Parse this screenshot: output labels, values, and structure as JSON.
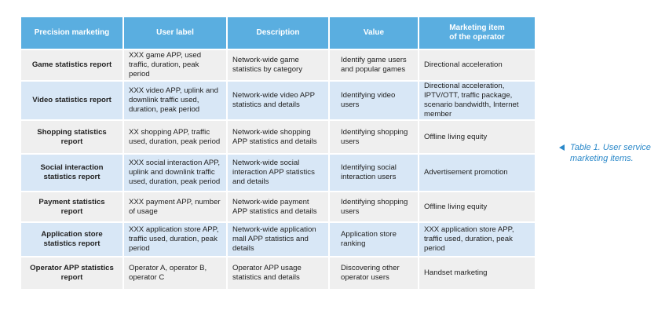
{
  "table": {
    "headers": [
      "Precision marketing",
      "User label",
      "Description",
      "Value",
      "Marketing item\nof the operator"
    ],
    "rows": [
      [
        "Game statistics report",
        "XXX game APP, used traffic, duration, peak period",
        "Network-wide game statistics by category",
        "Identify game users and popular games",
        "Directional acceleration"
      ],
      [
        "Video statistics report",
        "XXX video APP, uplink and downlink traffic used, duration, peak period",
        "Network-wide video APP statistics and details",
        "Identifying video users",
        "Directional acceleration, IPTV/OTT, traffic package, scenario bandwidth, Internet member"
      ],
      [
        "Shopping statistics report",
        "XX shopping APP, traffic used, duration, peak period",
        "Network-wide shopping APP statistics and details",
        "Identifying shopping users",
        "Offline living equity"
      ],
      [
        "Social interaction statistics report",
        "XXX social interaction APP, uplink and downlink traffic used, duration, peak period",
        "Network-wide social interaction APP statistics and details",
        "Identifying social interaction users",
        "Advertisement promotion"
      ],
      [
        "Payment statistics report",
        "XXX payment APP, number of usage",
        "Network-wide payment APP statistics and details",
        "Identifying shopping users",
        "Offline living equity"
      ],
      [
        "Application store statistics report",
        "XXX application store APP, traffic used, duration, peak period",
        "Network-wide application mall APP statistics and details",
        "Application store ranking",
        "XXX application store APP, traffic used, duration, peak period"
      ],
      [
        "Operator APP statistics report",
        "Operator A, operator B, operator C",
        "Operator APP usage statistics and details",
        "Discovering other operator users",
        "Handset marketing"
      ]
    ]
  },
  "caption": {
    "icon": "triangle-left-icon",
    "text": "Table 1. User service marketing items."
  }
}
